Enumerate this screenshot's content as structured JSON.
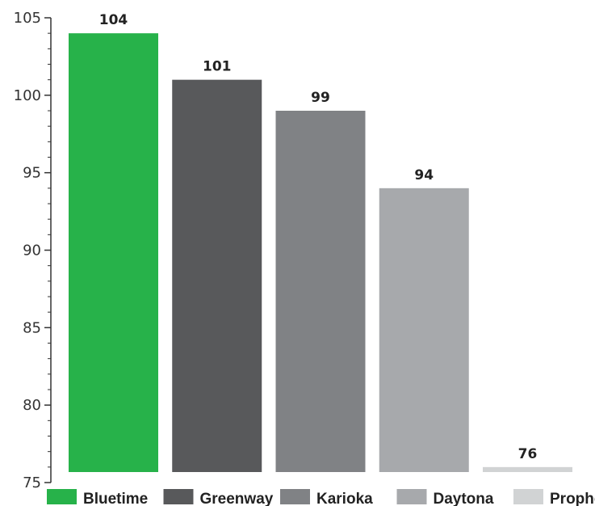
{
  "chart_data": {
    "type": "bar",
    "categories": [
      "Bluetime",
      "Greenway",
      "Karioka",
      "Daytona",
      "Prophet"
    ],
    "values": [
      104,
      101,
      99,
      94,
      76
    ],
    "value_labels": [
      "104",
      "101",
      "99",
      "94",
      "76"
    ],
    "colors": [
      "#27b24a",
      "#58595b",
      "#808285",
      "#a7a9ac",
      "#d1d3d4"
    ],
    "ylim": [
      75,
      105
    ],
    "yticks": [
      75,
      80,
      85,
      90,
      95,
      100,
      105
    ],
    "ytick_labels": [
      "75",
      "80",
      "85",
      "90",
      "95",
      "100",
      "105"
    ],
    "grid": false,
    "legend_position": "bottom"
  }
}
